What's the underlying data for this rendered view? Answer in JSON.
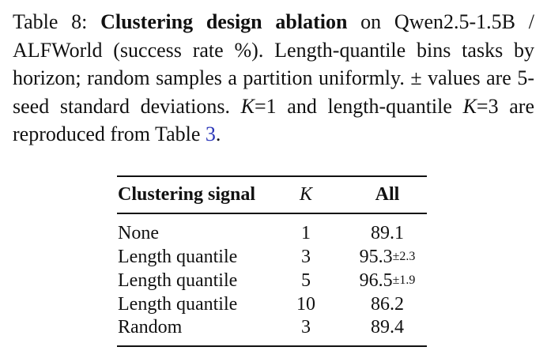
{
  "caption": [
    {
      "text": "Table 8: ",
      "style": "normal"
    },
    {
      "text": "Clustering design ablation",
      "style": "bold"
    },
    {
      "text": " on Qwen2.5-1.5B / ALFWorld (success rate %). Length-quantile bins tasks by horizon; random samples a partition uniformly. ± values are 5-seed standard deviations. ",
      "style": "normal"
    },
    {
      "text": "K",
      "style": "italic"
    },
    {
      "text": "=1 and length-quantile ",
      "style": "normal"
    },
    {
      "text": "K",
      "style": "italic"
    },
    {
      "text": "=3 are reproduced from Table ",
      "style": "normal"
    },
    {
      "text": "3",
      "style": "link"
    },
    {
      "text": ".",
      "style": "normal"
    }
  ],
  "table": {
    "header": [
      "Clustering signal",
      "K",
      "All"
    ],
    "rows": [
      [
        "None",
        "1",
        "89.1"
      ],
      [
        "Length quantile",
        "3",
        "95.3",
        "±2.3"
      ],
      [
        "Length quantile",
        "5",
        "96.5",
        "±1.9"
      ],
      [
        "Length quantile",
        "10",
        "86.2"
      ],
      [
        "Random",
        "3",
        "89.4"
      ]
    ]
  }
}
